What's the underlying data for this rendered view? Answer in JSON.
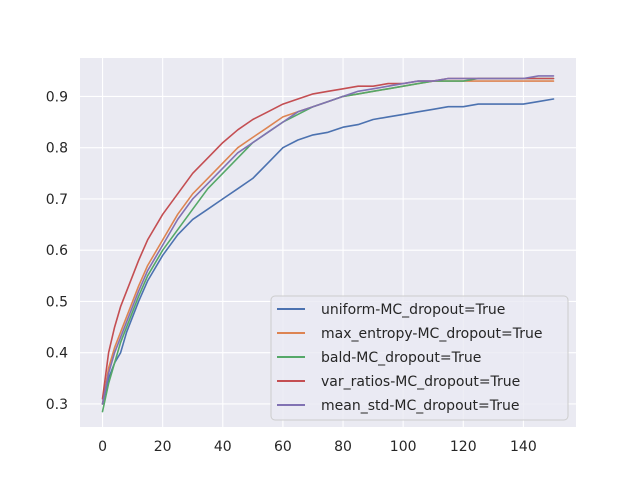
{
  "chart_data": {
    "type": "line",
    "title": "",
    "xlabel": "",
    "ylabel": "",
    "xlim": [
      -7.5,
      157.5
    ],
    "ylim": [
      0.255,
      0.975
    ],
    "xticks": [
      0,
      20,
      40,
      60,
      80,
      100,
      120,
      140
    ],
    "yticks": [
      0.3,
      0.4,
      0.5,
      0.6,
      0.7,
      0.8,
      0.9
    ],
    "grid": true,
    "legend_position": "lower-right",
    "background_color": "#eaeaf2",
    "grid_color": "#ffffff",
    "series": [
      {
        "name": "uniform-MC_dropout=True",
        "color": "#4c72b0",
        "x": [
          0,
          2,
          4,
          6,
          8,
          10,
          12,
          15,
          20,
          25,
          30,
          35,
          40,
          45,
          50,
          55,
          60,
          65,
          70,
          75,
          80,
          85,
          90,
          95,
          100,
          105,
          110,
          115,
          120,
          125,
          130,
          135,
          140,
          145,
          150
        ],
        "y": [
          0.3,
          0.35,
          0.38,
          0.4,
          0.44,
          0.47,
          0.5,
          0.54,
          0.59,
          0.63,
          0.66,
          0.68,
          0.7,
          0.72,
          0.74,
          0.77,
          0.8,
          0.815,
          0.825,
          0.83,
          0.84,
          0.845,
          0.855,
          0.86,
          0.865,
          0.87,
          0.875,
          0.88,
          0.88,
          0.885,
          0.885,
          0.885,
          0.885,
          0.89,
          0.895
        ]
      },
      {
        "name": "max_entropy-MC_dropout=True",
        "color": "#dd8452",
        "x": [
          0,
          2,
          4,
          6,
          8,
          10,
          12,
          15,
          20,
          25,
          30,
          35,
          40,
          45,
          50,
          55,
          60,
          65,
          70,
          75,
          80,
          85,
          90,
          95,
          100,
          105,
          110,
          115,
          120,
          125,
          130,
          135,
          140,
          145,
          150
        ],
        "y": [
          0.3,
          0.37,
          0.41,
          0.44,
          0.47,
          0.5,
          0.53,
          0.57,
          0.62,
          0.67,
          0.71,
          0.74,
          0.77,
          0.8,
          0.82,
          0.84,
          0.86,
          0.87,
          0.88,
          0.89,
          0.9,
          0.905,
          0.91,
          0.915,
          0.92,
          0.925,
          0.93,
          0.93,
          0.93,
          0.93,
          0.93,
          0.93,
          0.93,
          0.93,
          0.93
        ]
      },
      {
        "name": "bald-MC_dropout=True",
        "color": "#55a868",
        "x": [
          0,
          2,
          4,
          6,
          8,
          10,
          12,
          15,
          20,
          25,
          30,
          35,
          40,
          45,
          50,
          55,
          60,
          65,
          70,
          75,
          80,
          85,
          90,
          95,
          100,
          105,
          110,
          115,
          120,
          125,
          130,
          135,
          140,
          145,
          150
        ],
        "y": [
          0.285,
          0.34,
          0.38,
          0.42,
          0.45,
          0.48,
          0.51,
          0.55,
          0.6,
          0.64,
          0.68,
          0.72,
          0.75,
          0.78,
          0.81,
          0.83,
          0.85,
          0.865,
          0.88,
          0.89,
          0.9,
          0.905,
          0.91,
          0.915,
          0.92,
          0.925,
          0.93,
          0.93,
          0.93,
          0.935,
          0.935,
          0.935,
          0.935,
          0.935,
          0.935
        ]
      },
      {
        "name": "var_ratios-MC_dropout=True",
        "color": "#c44e52",
        "x": [
          0,
          2,
          4,
          6,
          8,
          10,
          12,
          15,
          20,
          25,
          30,
          35,
          40,
          45,
          50,
          55,
          60,
          65,
          70,
          75,
          80,
          85,
          90,
          95,
          100,
          105,
          110,
          115,
          120,
          125,
          130,
          135,
          140,
          145,
          150
        ],
        "y": [
          0.31,
          0.4,
          0.45,
          0.49,
          0.52,
          0.55,
          0.58,
          0.62,
          0.67,
          0.71,
          0.75,
          0.78,
          0.81,
          0.835,
          0.855,
          0.87,
          0.885,
          0.895,
          0.905,
          0.91,
          0.915,
          0.92,
          0.92,
          0.925,
          0.925,
          0.93,
          0.93,
          0.935,
          0.935,
          0.935,
          0.935,
          0.935,
          0.935,
          0.935,
          0.935
        ]
      },
      {
        "name": "mean_std-MC_dropout=True",
        "color": "#8172b3",
        "x": [
          0,
          2,
          4,
          6,
          8,
          10,
          12,
          15,
          20,
          25,
          30,
          35,
          40,
          45,
          50,
          55,
          60,
          65,
          70,
          75,
          80,
          85,
          90,
          95,
          100,
          105,
          110,
          115,
          120,
          125,
          130,
          135,
          140,
          145,
          150
        ],
        "y": [
          0.3,
          0.36,
          0.4,
          0.43,
          0.46,
          0.49,
          0.52,
          0.56,
          0.61,
          0.66,
          0.7,
          0.73,
          0.76,
          0.79,
          0.81,
          0.83,
          0.85,
          0.87,
          0.88,
          0.89,
          0.9,
          0.91,
          0.915,
          0.92,
          0.925,
          0.93,
          0.93,
          0.935,
          0.935,
          0.935,
          0.935,
          0.935,
          0.935,
          0.94,
          0.94
        ]
      }
    ]
  }
}
